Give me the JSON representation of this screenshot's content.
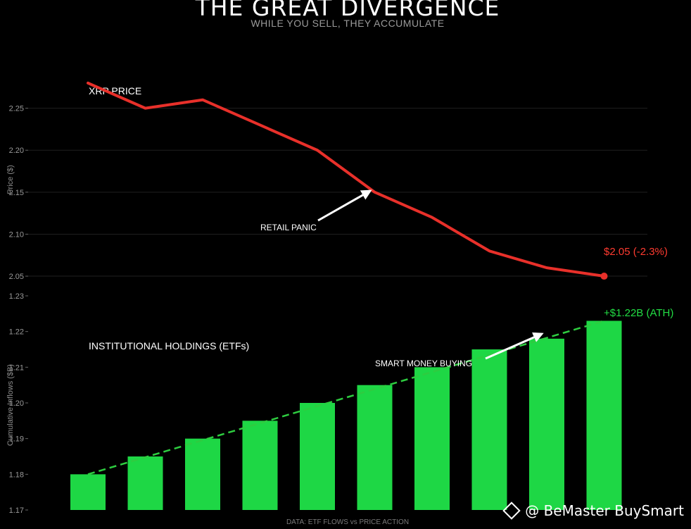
{
  "title": "THE GREAT DIVERGENCE",
  "subtitle": "WHILE YOU SELL, THEY ACCUMULATE",
  "footer": "DATA: ETF FLOWS vs PRICE ACTION",
  "watermark": "@ BeMaster BuySmart",
  "colors": {
    "price_line": "#e8302a",
    "bars": "#1ed745",
    "trend": "#2ecc40",
    "background": "#000000"
  },
  "chart_data": [
    {
      "type": "line",
      "panel_label": "XRP PRICE",
      "ylabel": "Price ($)",
      "ylim": [
        2.045,
        2.295
      ],
      "yticks": [
        "2.25",
        "2.20",
        "2.15",
        "2.10",
        "2.05"
      ],
      "ytick_values": [
        2.25,
        2.2,
        2.15,
        2.1,
        2.05
      ],
      "x": [
        1,
        2,
        3,
        4,
        5,
        6,
        7,
        8,
        9,
        10
      ],
      "values": [
        2.28,
        2.25,
        2.26,
        2.23,
        2.2,
        2.15,
        2.12,
        2.08,
        2.06,
        2.05
      ],
      "grid": true,
      "annotations": {
        "retail": "RETAIL PANIC",
        "end_label": "$2.05 (-2.3%)"
      }
    },
    {
      "type": "bar",
      "panel_label": "INSTITUTIONAL HOLDINGS (ETFs)",
      "ylabel": "Cumulative Inflows ($B)",
      "ylim": [
        1.17,
        1.23
      ],
      "yticks": [
        "1.23",
        "1.22",
        "1.21",
        "1.20",
        "1.19",
        "1.18",
        "1.17"
      ],
      "ytick_values": [
        1.23,
        1.22,
        1.21,
        1.2,
        1.19,
        1.18,
        1.17
      ],
      "x": [
        1,
        2,
        3,
        4,
        5,
        6,
        7,
        8,
        9,
        10
      ],
      "values": [
        1.18,
        1.185,
        1.19,
        1.195,
        1.2,
        1.205,
        1.21,
        1.215,
        1.218,
        1.223
      ],
      "trendline": true,
      "annotations": {
        "smart_money": "SMART MONEY BUYING",
        "end_label": "+$1.22B (ATH)"
      }
    }
  ]
}
